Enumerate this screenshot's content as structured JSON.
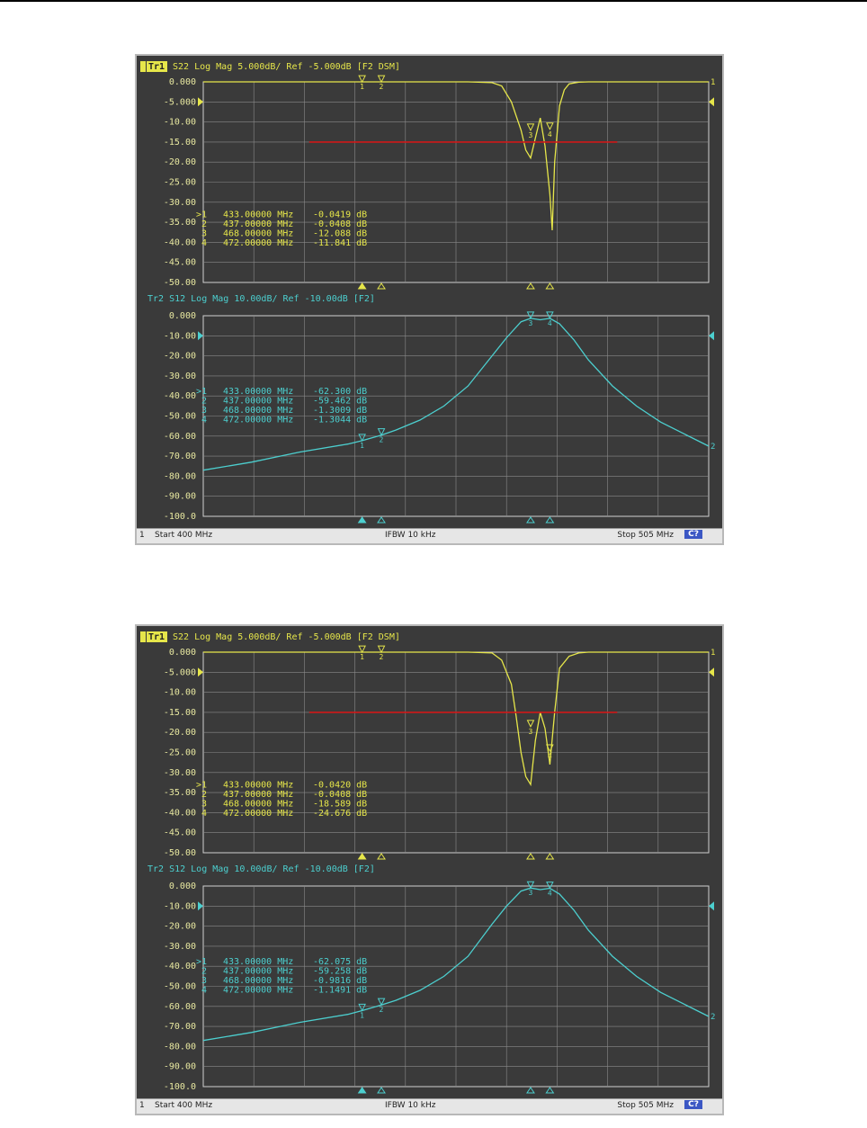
{
  "screens": [
    {
      "trace1": {
        "badge": "Tr1",
        "header_rest": "S22 Log Mag 5.000dB/ Ref -5.000dB [F2 DSM]",
        "ticks": [
          "0.000",
          "-5.000",
          "-10.00",
          "-15.00",
          "-20.00",
          "-25.00",
          "-30.00",
          "-35.00",
          "-40.00",
          "-45.00",
          "-50.00"
        ],
        "markers": [
          {
            "n": "1",
            "freq": "433.00000 MHz",
            "val": "-0.0419 dB"
          },
          {
            "n": "2",
            "freq": "437.00000 MHz",
            "val": "-0.0408 dB"
          },
          {
            "n": "3",
            "freq": "468.00000 MHz",
            "val": "-12.088 dB"
          },
          {
            "n": "4",
            "freq": "472.00000 MHz",
            "val": "-11.841 dB"
          }
        ]
      },
      "trace2": {
        "header": "Tr2 S12 Log Mag 10.00dB/ Ref -10.00dB [F2]",
        "ticks": [
          "0.000",
          "-10.00",
          "-20.00",
          "-30.00",
          "-40.00",
          "-50.00",
          "-60.00",
          "-70.00",
          "-80.00",
          "-90.00",
          "-100.0"
        ],
        "markers": [
          {
            "n": "1",
            "freq": "433.00000 MHz",
            "val": "-62.300 dB"
          },
          {
            "n": "2",
            "freq": "437.00000 MHz",
            "val": "-59.462 dB"
          },
          {
            "n": "3",
            "freq": "468.00000 MHz",
            "val": "-1.3009 dB"
          },
          {
            "n": "4",
            "freq": "472.00000 MHz",
            "val": "-1.3044 dB"
          }
        ]
      },
      "status": {
        "channel": "1",
        "start": "Start 400 MHz",
        "ifbw": "IFBW 10 kHz",
        "stop": "Stop 505 MHz",
        "c": "C?"
      }
    },
    {
      "trace1": {
        "badge": "Tr1",
        "header_rest": "S22 Log Mag 5.000dB/ Ref -5.000dB [F2 DSM]",
        "ticks": [
          "0.000",
          "-5.000",
          "-10.00",
          "-15.00",
          "-20.00",
          "-25.00",
          "-30.00",
          "-35.00",
          "-40.00",
          "-45.00",
          "-50.00"
        ],
        "markers": [
          {
            "n": "1",
            "freq": "433.00000 MHz",
            "val": "-0.0420 dB"
          },
          {
            "n": "2",
            "freq": "437.00000 MHz",
            "val": "-0.0408 dB"
          },
          {
            "n": "3",
            "freq": "468.00000 MHz",
            "val": "-18.589 dB"
          },
          {
            "n": "4",
            "freq": "472.00000 MHz",
            "val": "-24.676 dB"
          }
        ]
      },
      "trace2": {
        "header": "Tr2 S12 Log Mag 10.00dB/ Ref -10.00dB [F2]",
        "ticks": [
          "0.000",
          "-10.00",
          "-20.00",
          "-30.00",
          "-40.00",
          "-50.00",
          "-60.00",
          "-70.00",
          "-80.00",
          "-90.00",
          "-100.0"
        ],
        "markers": [
          {
            "n": "1",
            "freq": "433.00000 MHz",
            "val": "-62.075 dB"
          },
          {
            "n": "2",
            "freq": "437.00000 MHz",
            "val": "-59.258 dB"
          },
          {
            "n": "3",
            "freq": "468.00000 MHz",
            "val": "-0.9816 dB"
          },
          {
            "n": "4",
            "freq": "472.00000 MHz",
            "val": "-1.1491 dB"
          }
        ]
      },
      "status": {
        "channel": "1",
        "start": "Start 400 MHz",
        "ifbw": "IFBW 10 kHz",
        "stop": "Stop 505 MHz",
        "c": "C?"
      }
    }
  ],
  "colors": {
    "trace1": "#e6e64a",
    "trace2": "#4ccfcf",
    "limit": "#d01818",
    "grid": "#8a8a8a",
    "screen": "#3a3a3a",
    "label": "#e8e8a0"
  },
  "chart_data": [
    {
      "type": "line",
      "xlabel": "",
      "ylabel": "",
      "xlim": [
        400,
        505
      ],
      "ylim": [
        -50,
        0
      ],
      "grid": true,
      "series": [
        {
          "name": "S22",
          "x": [
            400,
            440,
            455,
            460,
            462,
            464,
            466,
            467,
            468,
            469,
            470,
            471,
            472,
            472.5,
            473,
            474,
            475,
            476,
            478,
            480,
            485,
            505
          ],
          "y": [
            0,
            0,
            0,
            -0.2,
            -1,
            -5,
            -12,
            -17,
            -19,
            -14,
            -9,
            -16,
            -28,
            -37,
            -20,
            -6,
            -2,
            -0.5,
            -0.1,
            0,
            0,
            0
          ]
        },
        {
          "name": "limit",
          "x": [
            422,
            486
          ],
          "y": [
            -15,
            -15
          ]
        }
      ],
      "markers": [
        {
          "x": 433,
          "y": -0.0419
        },
        {
          "x": 437,
          "y": -0.0408
        },
        {
          "x": 468,
          "y": -12.088
        },
        {
          "x": 472,
          "y": -11.841
        }
      ]
    },
    {
      "type": "line",
      "xlabel": "",
      "ylabel": "",
      "xlim": [
        400,
        505
      ],
      "ylim": [
        -100,
        0
      ],
      "grid": true,
      "series": [
        {
          "name": "S12",
          "x": [
            400,
            410,
            420,
            430,
            433,
            437,
            440,
            445,
            450,
            455,
            460,
            463,
            466,
            468,
            470,
            472,
            474,
            477,
            480,
            485,
            490,
            495,
            500,
            505
          ],
          "y": [
            -77,
            -73,
            -68,
            -64,
            -62.3,
            -59.5,
            -57,
            -52,
            -45,
            -35,
            -20,
            -11,
            -3,
            -1.3,
            -2,
            -1.3,
            -4,
            -12,
            -22,
            -35,
            -45,
            -53,
            -59,
            -65
          ]
        }
      ],
      "markers": [
        {
          "x": 433,
          "y": -62.3
        },
        {
          "x": 437,
          "y": -59.462
        },
        {
          "x": 468,
          "y": -1.3009
        },
        {
          "x": 472,
          "y": -1.3044
        }
      ]
    },
    {
      "type": "line",
      "xlabel": "",
      "ylabel": "",
      "xlim": [
        400,
        505
      ],
      "ylim": [
        -50,
        0
      ],
      "grid": true,
      "series": [
        {
          "name": "S22",
          "x": [
            400,
            455,
            460,
            462,
            464,
            465,
            466,
            467,
            468,
            469,
            470,
            471,
            472,
            473,
            474,
            476,
            478,
            480,
            485,
            505
          ],
          "y": [
            0,
            0,
            -0.2,
            -2,
            -8,
            -16,
            -25,
            -31,
            -33,
            -22,
            -15,
            -19,
            -28,
            -15,
            -4,
            -1,
            -0.2,
            0,
            0,
            0
          ]
        },
        {
          "name": "limit",
          "x": [
            422,
            486
          ],
          "y": [
            -15,
            -15
          ]
        }
      ],
      "markers": [
        {
          "x": 433,
          "y": -0.042
        },
        {
          "x": 437,
          "y": -0.0408
        },
        {
          "x": 468,
          "y": -18.589
        },
        {
          "x": 472,
          "y": -24.676
        }
      ]
    },
    {
      "type": "line",
      "xlabel": "",
      "ylabel": "",
      "xlim": [
        400,
        505
      ],
      "ylim": [
        -100,
        0
      ],
      "grid": true,
      "series": [
        {
          "name": "S12",
          "x": [
            400,
            410,
            420,
            430,
            433,
            437,
            440,
            445,
            450,
            455,
            460,
            463,
            466,
            468,
            470,
            472,
            474,
            477,
            480,
            485,
            490,
            495,
            500,
            505
          ],
          "y": [
            -77,
            -73,
            -68,
            -64,
            -62.1,
            -59.3,
            -57,
            -52,
            -45,
            -35,
            -19,
            -10,
            -2.5,
            -1,
            -1.8,
            -1.1,
            -4,
            -12,
            -22,
            -35,
            -45,
            -53,
            -59,
            -65
          ]
        }
      ],
      "markers": [
        {
          "x": 433,
          "y": -62.075
        },
        {
          "x": 437,
          "y": -59.258
        },
        {
          "x": 468,
          "y": -0.9816
        },
        {
          "x": 472,
          "y": -1.1491
        }
      ]
    }
  ]
}
